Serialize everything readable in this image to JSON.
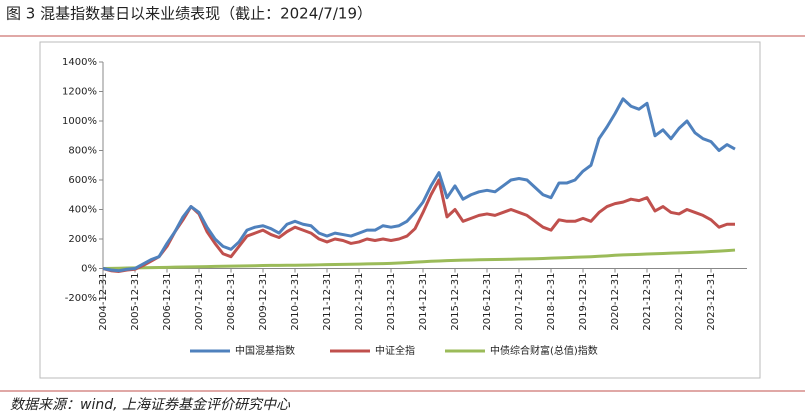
{
  "chart_data": {
    "type": "line",
    "title": "图 3 混基指数基日以来业绩表现（截止：2024/7/19）",
    "categories": [
      "2004-12-31",
      null,
      null,
      null,
      "2005-12-31",
      null,
      null,
      null,
      "2006-12-31",
      null,
      null,
      null,
      "2007-12-31",
      null,
      null,
      null,
      "2008-12-31",
      null,
      null,
      null,
      "2009-12-31",
      null,
      null,
      null,
      "2010-12-31",
      null,
      null,
      null,
      "2011-12-31",
      null,
      null,
      null,
      "2012-12-31",
      null,
      null,
      null,
      "2013-12-31",
      null,
      null,
      null,
      "2014-12-31",
      null,
      null,
      null,
      "2015-12-31",
      null,
      null,
      null,
      "2016-12-31",
      null,
      null,
      null,
      "2017-12-31",
      null,
      null,
      null,
      "2018-12-31",
      null,
      null,
      null,
      "2019-12-31",
      null,
      null,
      null,
      "2020-12-31",
      null,
      null,
      null,
      "2021-12-31",
      null,
      null,
      null,
      "2022-12-31",
      null,
      null,
      null,
      "2023-12-31",
      null,
      null,
      null
    ],
    "series": [
      {
        "name": "中国混基指数",
        "color": "#4f81bd",
        "values": [
          0,
          -10,
          -15,
          -5,
          0,
          30,
          60,
          80,
          170,
          250,
          350,
          420,
          380,
          280,
          200,
          150,
          130,
          180,
          260,
          280,
          290,
          270,
          240,
          300,
          320,
          300,
          290,
          240,
          220,
          240,
          230,
          220,
          240,
          260,
          260,
          290,
          280,
          290,
          320,
          380,
          450,
          560,
          650,
          480,
          560,
          470,
          500,
          520,
          530,
          520,
          560,
          600,
          610,
          600,
          550,
          500,
          480,
          580,
          580,
          600,
          660,
          700,
          880,
          960,
          1050,
          1150,
          1100,
          1080,
          1120,
          900,
          940,
          880,
          950,
          1000,
          920,
          880,
          860,
          800,
          840,
          810
        ]
      },
      {
        "name": "中证全指",
        "color": "#c0504d",
        "values": [
          0,
          -15,
          -20,
          -10,
          -5,
          20,
          50,
          80,
          150,
          250,
          330,
          420,
          370,
          250,
          170,
          100,
          80,
          150,
          220,
          240,
          260,
          230,
          210,
          250,
          280,
          260,
          240,
          200,
          180,
          200,
          190,
          170,
          180,
          200,
          190,
          200,
          190,
          200,
          220,
          270,
          380,
          500,
          600,
          350,
          400,
          320,
          340,
          360,
          370,
          360,
          380,
          400,
          380,
          360,
          320,
          280,
          260,
          330,
          320,
          320,
          340,
          320,
          380,
          420,
          440,
          450,
          470,
          460,
          480,
          390,
          420,
          380,
          370,
          400,
          380,
          360,
          330,
          280,
          300,
          300
        ]
      },
      {
        "name": "中债综合财富(总值)指数",
        "color": "#9bbb59",
        "values": [
          0,
          1,
          2,
          3,
          4,
          5,
          6,
          7,
          8,
          9,
          10,
          11,
          12,
          13,
          14,
          15,
          16,
          17,
          18,
          19,
          20,
          21,
          21,
          22,
          22,
          23,
          24,
          25,
          26,
          27,
          28,
          29,
          30,
          31,
          32,
          33,
          35,
          37,
          40,
          43,
          46,
          49,
          51,
          53,
          55,
          57,
          58,
          59,
          60,
          61,
          62,
          63,
          64,
          65,
          66,
          68,
          70,
          72,
          74,
          76,
          78,
          80,
          83,
          86,
          90,
          92,
          94,
          96,
          98,
          100,
          102,
          104,
          106,
          108,
          110,
          112,
          115,
          118,
          121,
          125
        ]
      }
    ],
    "ylim": [
      -200,
      1400
    ],
    "yticks": [
      {
        "value": -200,
        "label": "-200%"
      },
      {
        "value": 0,
        "label": "0%"
      },
      {
        "value": 200,
        "label": "200%"
      },
      {
        "value": 400,
        "label": "400%"
      },
      {
        "value": 600,
        "label": "600%"
      },
      {
        "value": 800,
        "label": "800%"
      },
      {
        "value": 1000,
        "label": "1000%"
      },
      {
        "value": 1200,
        "label": "1200%"
      },
      {
        "value": 1400,
        "label": "1400%"
      }
    ],
    "source": "数据来源：wind, 上海证券基金评价研究中心"
  }
}
